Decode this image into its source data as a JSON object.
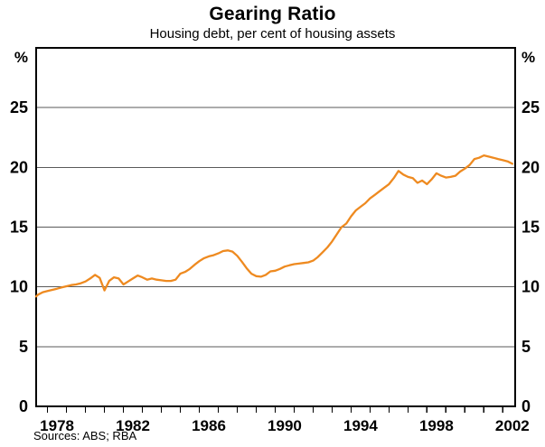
{
  "title": "Gearing Ratio",
  "subtitle": "Housing debt, per cent of housing assets",
  "footer": {
    "sources": "Sources: ABS; RBA"
  },
  "colors": {
    "line": "#EE8A20",
    "grid": "#5a5a5a",
    "axis": "#000000",
    "background": "#ffffff",
    "text": "#000000"
  },
  "chart_data": {
    "type": "line",
    "title": "Gearing Ratio",
    "subtitle": "Housing debt, per cent of housing assets",
    "unit_label_left": "%",
    "unit_label_right": "%",
    "sources": "Sources: ABS; RBA",
    "grid": "horizontal gridlines at labeled ticks",
    "legend": "none",
    "ylim": [
      0,
      30
    ],
    "yticks_labeled": [
      0,
      5,
      10,
      15,
      20,
      25
    ],
    "gridlines": [
      5,
      10,
      15,
      20,
      25
    ],
    "xlim": [
      1977.4,
      2002.65
    ],
    "x_ticks": [
      1978,
      1979,
      1980,
      1981,
      1982,
      1983,
      1984,
      1985,
      1986,
      1987,
      1988,
      1989,
      1990,
      1991,
      1992,
      1993,
      1994,
      1995,
      1996,
      1997,
      1998,
      1999,
      2000,
      2001,
      2002
    ],
    "x_year_labels": [
      1978,
      1982,
      1986,
      1990,
      1994,
      1998,
      2002
    ],
    "series": [
      {
        "name": "Housing gearing ratio (housing debt as per cent of housing assets)",
        "color": "#EE8A20",
        "frequency": "quarterly",
        "points": [
          [
            1977.4,
            9.2
          ],
          [
            1977.5,
            9.35
          ],
          [
            1977.75,
            9.55
          ],
          [
            1978,
            9.65
          ],
          [
            1978.25,
            9.75
          ],
          [
            1978.5,
            9.85
          ],
          [
            1978.75,
            9.95
          ],
          [
            1979,
            10.05
          ],
          [
            1979.25,
            10.15
          ],
          [
            1979.5,
            10.2
          ],
          [
            1979.75,
            10.3
          ],
          [
            1980,
            10.45
          ],
          [
            1980.25,
            10.7
          ],
          [
            1980.5,
            11.0
          ],
          [
            1980.75,
            10.75
          ],
          [
            1981,
            9.7
          ],
          [
            1981.25,
            10.5
          ],
          [
            1981.5,
            10.8
          ],
          [
            1981.75,
            10.7
          ],
          [
            1982,
            10.2
          ],
          [
            1982.25,
            10.45
          ],
          [
            1982.5,
            10.7
          ],
          [
            1982.75,
            10.95
          ],
          [
            1983,
            10.8
          ],
          [
            1983.25,
            10.6
          ],
          [
            1983.5,
            10.7
          ],
          [
            1983.75,
            10.6
          ],
          [
            1984,
            10.55
          ],
          [
            1984.25,
            10.5
          ],
          [
            1984.5,
            10.5
          ],
          [
            1984.75,
            10.6
          ],
          [
            1985,
            11.1
          ],
          [
            1985.25,
            11.25
          ],
          [
            1985.5,
            11.5
          ],
          [
            1985.75,
            11.85
          ],
          [
            1986,
            12.15
          ],
          [
            1986.25,
            12.4
          ],
          [
            1986.5,
            12.55
          ],
          [
            1986.75,
            12.65
          ],
          [
            1987,
            12.8
          ],
          [
            1987.25,
            13.0
          ],
          [
            1987.5,
            13.05
          ],
          [
            1987.75,
            12.95
          ],
          [
            1988,
            12.6
          ],
          [
            1988.25,
            12.1
          ],
          [
            1988.5,
            11.55
          ],
          [
            1988.75,
            11.1
          ],
          [
            1989,
            10.9
          ],
          [
            1989.25,
            10.85
          ],
          [
            1989.5,
            11.0
          ],
          [
            1989.75,
            11.3
          ],
          [
            1990,
            11.35
          ],
          [
            1990.25,
            11.5
          ],
          [
            1990.5,
            11.7
          ],
          [
            1990.75,
            11.8
          ],
          [
            1991,
            11.9
          ],
          [
            1991.25,
            11.95
          ],
          [
            1991.5,
            12.0
          ],
          [
            1991.75,
            12.05
          ],
          [
            1992,
            12.2
          ],
          [
            1992.25,
            12.5
          ],
          [
            1992.5,
            12.9
          ],
          [
            1992.75,
            13.3
          ],
          [
            1993,
            13.8
          ],
          [
            1993.25,
            14.4
          ],
          [
            1993.5,
            15.0
          ],
          [
            1993.75,
            15.3
          ],
          [
            1994,
            15.9
          ],
          [
            1994.25,
            16.4
          ],
          [
            1994.5,
            16.7
          ],
          [
            1994.75,
            17.0
          ],
          [
            1995,
            17.4
          ],
          [
            1995.25,
            17.7
          ],
          [
            1995.5,
            18.0
          ],
          [
            1995.75,
            18.3
          ],
          [
            1996,
            18.6
          ],
          [
            1996.25,
            19.1
          ],
          [
            1996.5,
            19.7
          ],
          [
            1996.75,
            19.4
          ],
          [
            1997,
            19.2
          ],
          [
            1997.25,
            19.1
          ],
          [
            1997.5,
            18.7
          ],
          [
            1997.75,
            18.9
          ],
          [
            1998,
            18.6
          ],
          [
            1998.25,
            19.0
          ],
          [
            1998.5,
            19.5
          ],
          [
            1998.75,
            19.3
          ],
          [
            1999,
            19.15
          ],
          [
            1999.25,
            19.2
          ],
          [
            1999.5,
            19.3
          ],
          [
            1999.75,
            19.65
          ],
          [
            2000,
            19.9
          ],
          [
            2000.25,
            20.2
          ],
          [
            2000.5,
            20.7
          ],
          [
            2000.75,
            20.8
          ],
          [
            2001,
            21.0
          ],
          [
            2001.25,
            20.9
          ],
          [
            2001.5,
            20.8
          ],
          [
            2001.75,
            20.7
          ],
          [
            2002,
            20.6
          ],
          [
            2002.25,
            20.5
          ],
          [
            2002.5,
            20.3
          ]
        ]
      }
    ]
  }
}
